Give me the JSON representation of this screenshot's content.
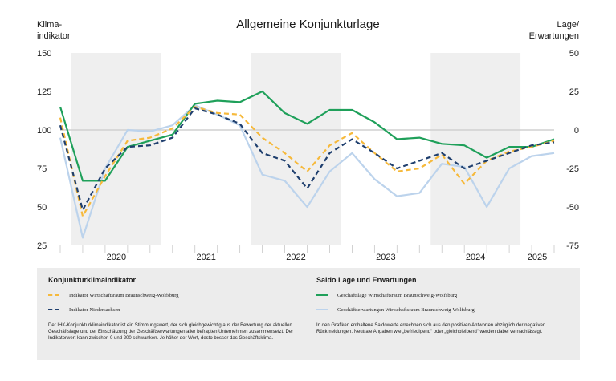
{
  "header": {
    "left_axis_title": [
      "Klima-",
      "indikator"
    ],
    "title": "Allgemeine Konjunkturlage",
    "right_axis_title": [
      "Lage/",
      "Erwartungen"
    ]
  },
  "legend": {
    "left_heading": "Konjunkturklimaindikator",
    "left_items": [
      {
        "label": "Indikator Wirtschaftsraum Braunschweig-Wolfsburg",
        "color": "#f6b93b",
        "style": "dashed"
      },
      {
        "label": "Indikator Niedersachsen",
        "color": "#1f3f6e",
        "style": "dashed"
      }
    ],
    "left_note": "Der IHK-Konjunkturklimaindikator ist ein Stimmungswert, der sich gleichgewichtig aus der Bewertung der aktuellen Geschäftslage und der Einschätzung der Geschäftserwartungen aller befragten Unternehmen zusammensetzt. Der Indikatorwert kann zwischen 0 und 200 schwanken. Je höher der Wert, desto besser das Geschäftsklima.",
    "right_heading": "Saldo Lage und Erwartungen",
    "right_items": [
      {
        "label": "Geschäftslage Wirtschaftsraum Braunschweig-Wolfsburg",
        "color": "#1fa05a",
        "style": "solid"
      },
      {
        "label": "Geschäftserwartungen Wirtschaftsraum Braunschweig-Wolfsburg",
        "color": "#bcd3ec",
        "style": "solid"
      }
    ],
    "right_note": "In den Grafiken enthaltene Saldowerte errechnen sich aus den positiven Antworten abzüglich der negativen Rückmeldungen. Neutrale Angaben wie „befriedigend“ oder „gleichbleibend“ werden dabei vernachlässigt."
  },
  "chart_data": {
    "type": "line",
    "x_categories": [
      "2019-Q4",
      "2020-Q1",
      "2020-Q2",
      "2020-Q3",
      "2020-Q4",
      "2021-Q1",
      "2021-Q2",
      "2021-Q3",
      "2021-Q4",
      "2022-Q1",
      "2022-Q2",
      "2022-Q3",
      "2022-Q4",
      "2023-Q1",
      "2023-Q2",
      "2023-Q3",
      "2023-Q4",
      "2024-Q1",
      "2024-Q2",
      "2024-Q3",
      "2024-Q4",
      "2025-Q1",
      "2025-Q2"
    ],
    "year_labels": [
      "2020",
      "2021",
      "2022",
      "2023",
      "2024",
      "2025"
    ],
    "shaded_years": [
      "2020",
      "2022",
      "2024"
    ],
    "left_axis": {
      "ticks": [
        25,
        50,
        75,
        100,
        125,
        150
      ],
      "range": [
        25,
        150
      ]
    },
    "right_axis": {
      "ticks": [
        -75,
        -50,
        -25,
        0,
        25,
        50
      ],
      "range": [
        -75,
        50
      ]
    },
    "reference_line_right": 0,
    "series": [
      {
        "name": "Indikator Wirtschaftsraum Braunschweig-Wolfsburg",
        "axis": "left",
        "color": "#f6b93b",
        "dash": true,
        "values": [
          108,
          44,
          70,
          93,
          95,
          101,
          115,
          111,
          110,
          95,
          85,
          73,
          90,
          98,
          85,
          73,
          75,
          84,
          65,
          80,
          86,
          89,
          93
        ]
      },
      {
        "name": "Indikator Niedersachsen",
        "axis": "left",
        "color": "#1f3f6e",
        "dash": true,
        "values": [
          103,
          48,
          75,
          89,
          90,
          95,
          114,
          110,
          104,
          85,
          80,
          62,
          85,
          94,
          85,
          75,
          80,
          85,
          75,
          80,
          85,
          90,
          92
        ]
      },
      {
        "name": "Geschäftslage Wirtschaftsraum Braunschweig-Wolfsburg",
        "axis": "right",
        "color": "#1fa05a",
        "dash": false,
        "values": [
          15,
          -33,
          -33,
          -11,
          -7,
          -3,
          17,
          19,
          18,
          25,
          11,
          4,
          13,
          13,
          5,
          -6,
          -5,
          -9,
          -10,
          -18,
          -11,
          -11,
          -6
        ]
      },
      {
        "name": "Geschäftserwartungen Wirtschaftsraum Braunschweig-Wolfsburg",
        "axis": "right",
        "color": "#bcd3ec",
        "dash": false,
        "values": [
          -5,
          -70,
          -25,
          0,
          -1,
          3,
          16,
          10,
          3,
          -29,
          -33,
          -50,
          -27,
          -15,
          -32,
          -43,
          -41,
          -22,
          -24,
          -50,
          -25,
          -17,
          -15
        ]
      }
    ]
  }
}
